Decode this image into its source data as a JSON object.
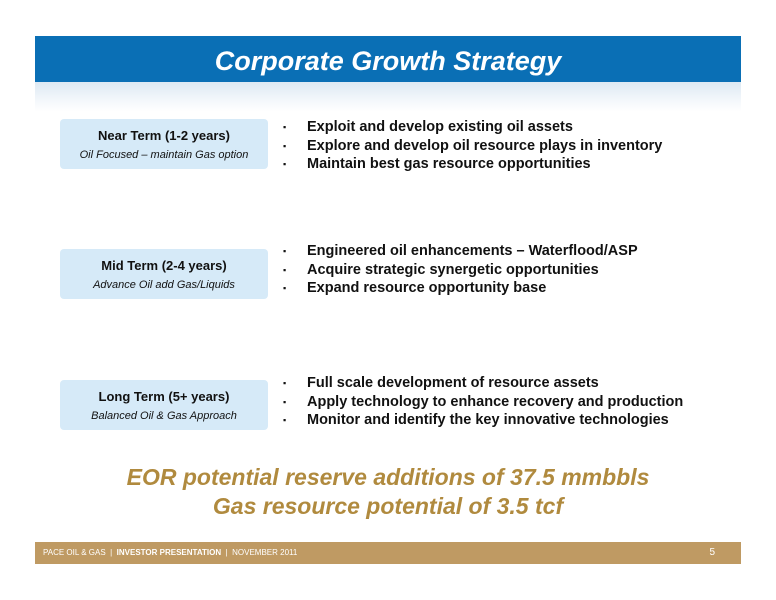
{
  "title": "Corporate Growth Strategy",
  "terms": [
    {
      "label": "Near Term (1-2 years)",
      "subtitle": "Oil Focused – maintain Gas option",
      "bullets": [
        "Exploit and develop existing oil assets",
        "Explore and develop oil resource plays in inventory",
        "Maintain best gas resource opportunities"
      ]
    },
    {
      "label": "Mid Term (2-4 years)",
      "subtitle": "Advance Oil add Gas/Liquids",
      "bullets": [
        "Engineered oil enhancements – Waterflood/ASP",
        "Acquire strategic synergetic opportunities",
        "Expand resource opportunity base"
      ]
    },
    {
      "label": "Long Term (5+ years)",
      "subtitle": "Balanced Oil & Gas Approach",
      "bullets": [
        "Full scale development of resource assets",
        "Apply technology to enhance recovery and production",
        "Monitor and identify the key innovative technologies"
      ]
    }
  ],
  "bullet_glyph": "▪",
  "highlights": [
    "EOR potential reserve additions of  37.5 mmbbls",
    "Gas resource potential of 3.5 tcf"
  ],
  "footer": {
    "company": "PACE OIL & GAS",
    "separator": "|",
    "presentation": "INVESTOR PRESENTATION",
    "date": "NOVEMBER 2011",
    "page_number": "5"
  },
  "colors": {
    "title_bar": "#0a6fb5",
    "term_box": "#d6eaf8",
    "highlight_text": "#b08a3e",
    "footer_bar": "#bf9a63"
  }
}
